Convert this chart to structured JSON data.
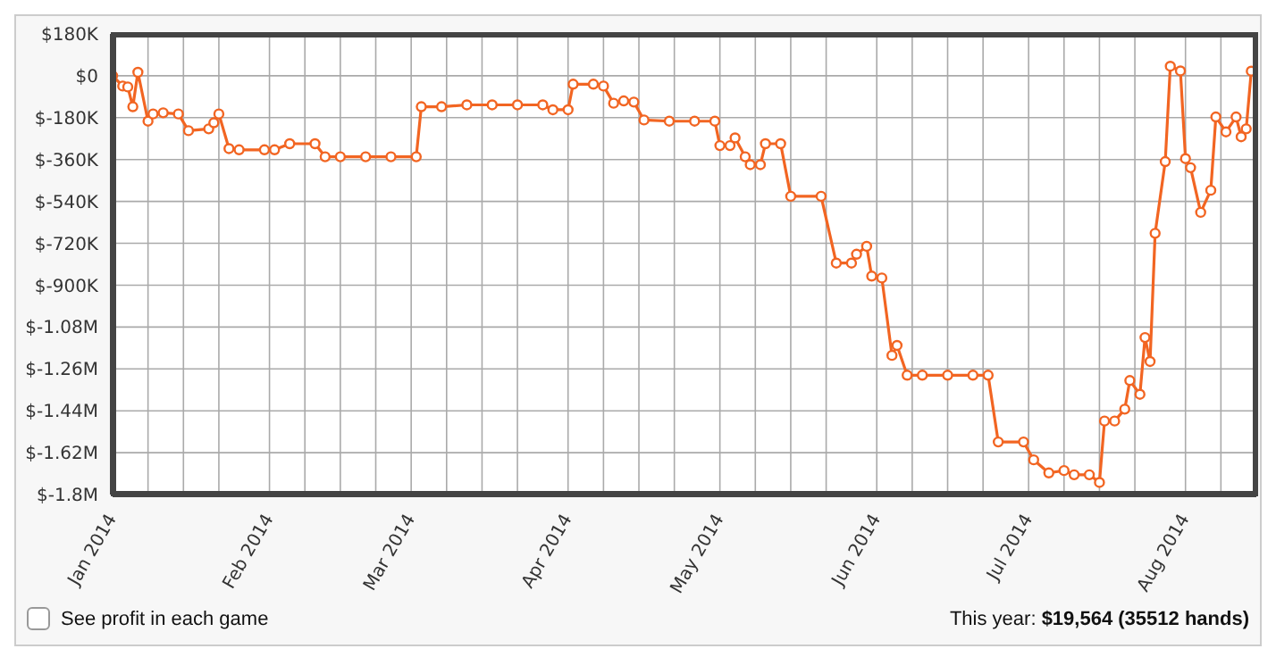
{
  "chart_data": {
    "type": "line",
    "x": [
      "2014-01-01",
      "2014-01-03",
      "2014-01-04",
      "2014-01-05",
      "2014-01-06",
      "2014-01-08",
      "2014-01-09",
      "2014-01-11",
      "2014-01-14",
      "2014-01-16",
      "2014-01-20",
      "2014-01-21",
      "2014-01-22",
      "2014-01-24",
      "2014-01-26",
      "2014-01-31",
      "2014-02-02",
      "2014-02-05",
      "2014-02-10",
      "2014-02-12",
      "2014-02-15",
      "2014-02-20",
      "2014-02-25",
      "2014-03-02",
      "2014-03-03",
      "2014-03-07",
      "2014-03-12",
      "2014-03-17",
      "2014-03-22",
      "2014-03-27",
      "2014-03-29",
      "2014-04-01",
      "2014-04-02",
      "2014-04-06",
      "2014-04-08",
      "2014-04-10",
      "2014-04-12",
      "2014-04-14",
      "2014-04-16",
      "2014-04-21",
      "2014-04-26",
      "2014-04-30",
      "2014-05-01",
      "2014-05-03",
      "2014-05-04",
      "2014-05-06",
      "2014-05-07",
      "2014-05-09",
      "2014-05-10",
      "2014-05-13",
      "2014-05-15",
      "2014-05-21",
      "2014-05-24",
      "2014-05-27",
      "2014-05-28",
      "2014-05-30",
      "2014-05-31",
      "2014-06-02",
      "2014-06-04",
      "2014-06-05",
      "2014-06-07",
      "2014-06-10",
      "2014-06-15",
      "2014-06-20",
      "2014-06-23",
      "2014-06-25",
      "2014-06-30",
      "2014-07-02",
      "2014-07-05",
      "2014-07-08",
      "2014-07-10",
      "2014-07-13",
      "2014-07-15",
      "2014-07-16",
      "2014-07-18",
      "2014-07-20",
      "2014-07-21",
      "2014-07-23",
      "2014-07-24",
      "2014-07-25",
      "2014-07-26",
      "2014-07-28",
      "2014-07-29",
      "2014-07-31",
      "2014-08-01",
      "2014-08-02",
      "2014-08-04",
      "2014-08-06",
      "2014-08-07",
      "2014-08-09",
      "2014-08-11",
      "2014-08-12",
      "2014-08-13",
      "2014-08-14"
    ],
    "series": [
      {
        "color": "#f26522",
        "values": [
          0,
          -44000,
          -48000,
          -133000,
          15000,
          -195000,
          -164000,
          -159000,
          -164000,
          -236000,
          -228000,
          -202000,
          -164000,
          -313000,
          -318000,
          -318000,
          -318000,
          -292000,
          -292000,
          -348000,
          -348000,
          -348000,
          -348000,
          -348000,
          -133000,
          -133000,
          -125000,
          -125000,
          -125000,
          -125000,
          -146000,
          -146000,
          -36000,
          -36000,
          -44000,
          -118000,
          -108000,
          -113000,
          -190000,
          -195000,
          -195000,
          -195000,
          -300000,
          -300000,
          -267000,
          -348000,
          -382000,
          -382000,
          -292000,
          -292000,
          -518000,
          -518000,
          -805000,
          -805000,
          -767000,
          -733000,
          -861000,
          -869000,
          -1202000,
          -1159000,
          -1287000,
          -1287000,
          -1287000,
          -1287000,
          -1287000,
          -1574000,
          -1574000,
          -1651000,
          -1707000,
          -1697000,
          -1715000,
          -1715000,
          -1748000,
          -1484000,
          -1484000,
          -1433000,
          -1310000,
          -1369000,
          -1125000,
          -1228000,
          -677000,
          -369000,
          41000,
          21000,
          -356000,
          -395000,
          -587000,
          -492000,
          -177000,
          -241000,
          -177000,
          -262000,
          -228000,
          20000
        ]
      }
    ],
    "xlim": [
      "2014-01-01",
      "2014-08-15"
    ],
    "xticks": [
      {
        "value": "2014-01-01",
        "label": "Jan 2014"
      },
      {
        "value": "2014-01-08",
        "label": null
      },
      {
        "value": "2014-01-15",
        "label": null
      },
      {
        "value": "2014-01-22",
        "label": null
      },
      {
        "value": "2014-02-01",
        "label": "Feb 2014"
      },
      {
        "value": "2014-02-08",
        "label": null
      },
      {
        "value": "2014-02-15",
        "label": null
      },
      {
        "value": "2014-02-22",
        "label": null
      },
      {
        "value": "2014-03-01",
        "label": "Mar 2014"
      },
      {
        "value": "2014-03-08",
        "label": null
      },
      {
        "value": "2014-03-15",
        "label": null
      },
      {
        "value": "2014-03-22",
        "label": null
      },
      {
        "value": "2014-04-01",
        "label": "Apr 2014"
      },
      {
        "value": "2014-04-08",
        "label": null
      },
      {
        "value": "2014-04-15",
        "label": null
      },
      {
        "value": "2014-04-22",
        "label": null
      },
      {
        "value": "2014-05-01",
        "label": "May 2014"
      },
      {
        "value": "2014-05-08",
        "label": null
      },
      {
        "value": "2014-05-15",
        "label": null
      },
      {
        "value": "2014-05-22",
        "label": null
      },
      {
        "value": "2014-06-01",
        "label": "Jun 2014"
      },
      {
        "value": "2014-06-08",
        "label": null
      },
      {
        "value": "2014-06-15",
        "label": null
      },
      {
        "value": "2014-06-22",
        "label": null
      },
      {
        "value": "2014-07-01",
        "label": "Jul 2014"
      },
      {
        "value": "2014-07-08",
        "label": null
      },
      {
        "value": "2014-07-15",
        "label": null
      },
      {
        "value": "2014-07-22",
        "label": null
      },
      {
        "value": "2014-08-01",
        "label": "Aug 2014"
      },
      {
        "value": "2014-08-08",
        "label": null
      }
    ],
    "ylim": [
      -1800000,
      180000
    ],
    "yticks": [
      {
        "value": 180000,
        "label": "$180K"
      },
      {
        "value": 0,
        "label": "$0"
      },
      {
        "value": -180000,
        "label": "$-180K"
      },
      {
        "value": -360000,
        "label": "$-360K"
      },
      {
        "value": -540000,
        "label": "$-540K"
      },
      {
        "value": -720000,
        "label": "$-720K"
      },
      {
        "value": -900000,
        "label": "$-900K"
      },
      {
        "value": -1080000,
        "label": "$-1.08M"
      },
      {
        "value": -1260000,
        "label": "$-1.26M"
      },
      {
        "value": -1440000,
        "label": "$-1.44M"
      },
      {
        "value": -1620000,
        "label": "$-1.62M"
      },
      {
        "value": -1800000,
        "label": "$-1.8M"
      }
    ],
    "grid": true,
    "marker": "circle",
    "annotations": [
      "See profit in each game",
      "This year:",
      "$19,564 (35512 hands)"
    ]
  }
}
